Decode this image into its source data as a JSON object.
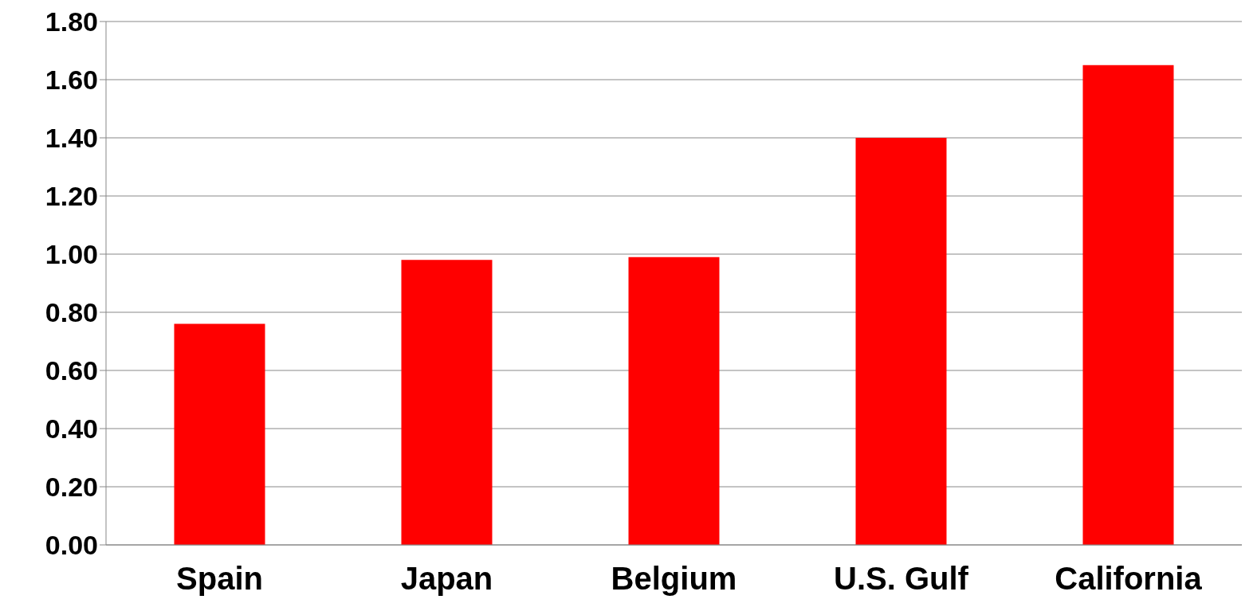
{
  "chart_data": {
    "type": "bar",
    "categories": [
      "Spain",
      "Japan",
      "Belgium",
      "U.S. Gulf",
      "California"
    ],
    "values": [
      0.76,
      0.98,
      0.99,
      1.4,
      1.65
    ],
    "color": "#ff0000",
    "ylim": [
      0,
      1.8
    ],
    "yticks": [
      {
        "value": 0,
        "label": "0.00"
      },
      {
        "value": 0.2,
        "label": "0.20"
      },
      {
        "value": 0.4,
        "label": "0.40"
      },
      {
        "value": 0.6,
        "label": "0.60"
      },
      {
        "value": 0.8,
        "label": "0.80"
      },
      {
        "value": 1.0,
        "label": "1.00"
      },
      {
        "value": 1.2,
        "label": "1.20"
      },
      {
        "value": 1.4,
        "label": "1.40"
      },
      {
        "value": 1.6,
        "label": "1.60"
      },
      {
        "value": 1.8,
        "label": "1.80"
      }
    ],
    "grid": "y"
  }
}
